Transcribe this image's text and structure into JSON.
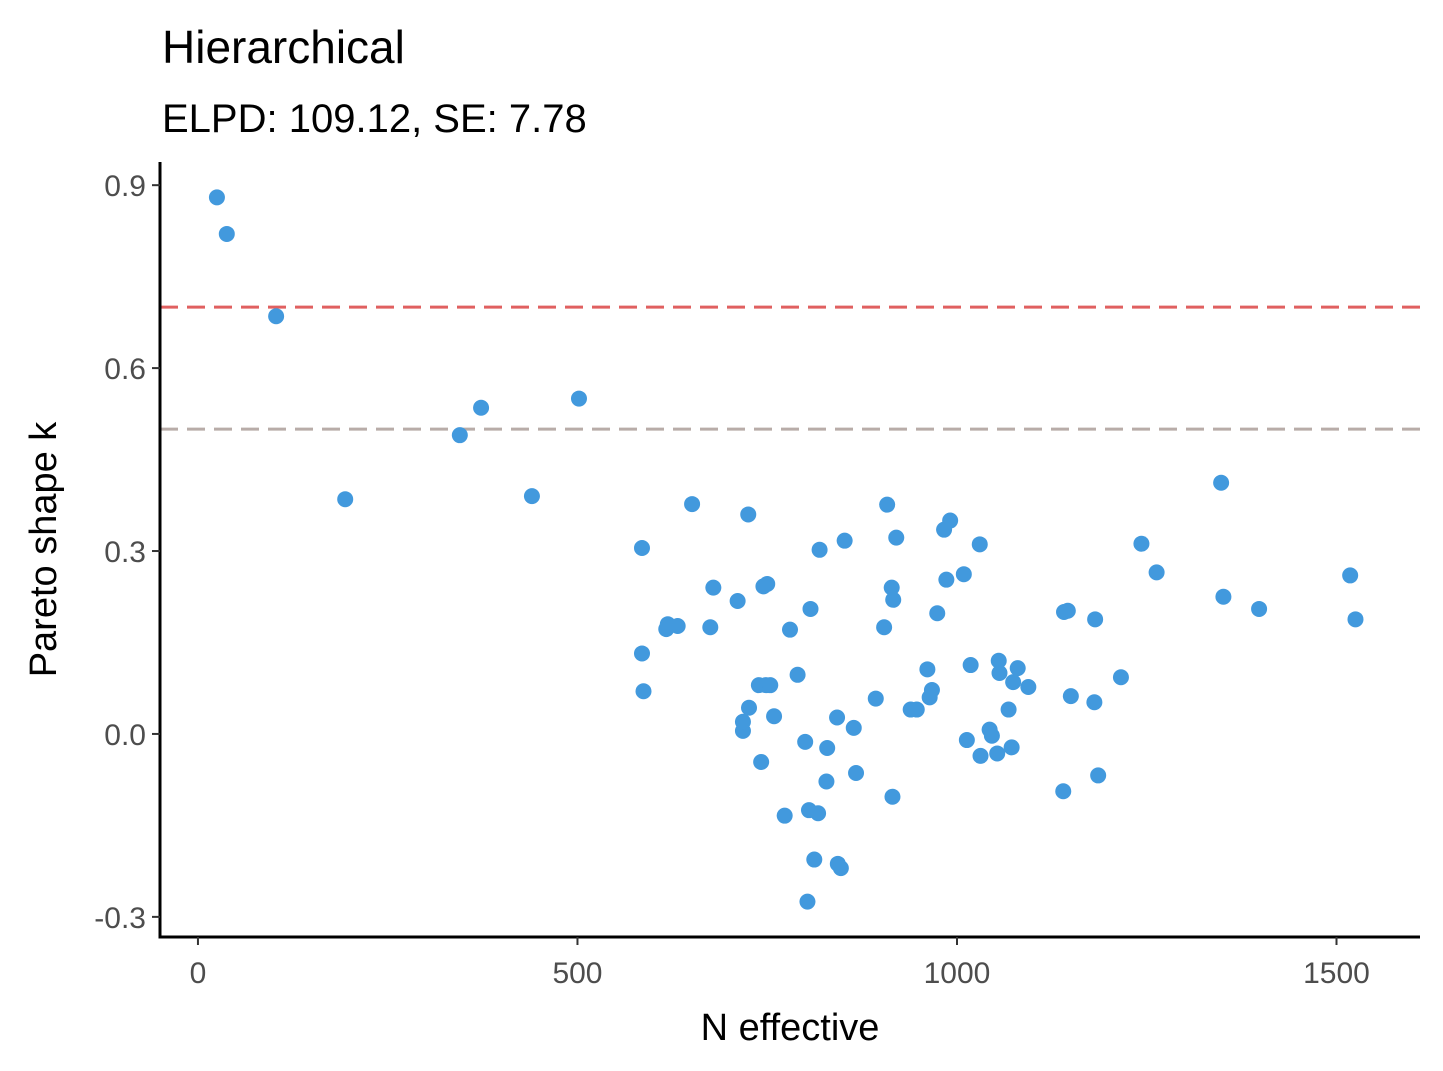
{
  "chart_data": {
    "type": "scatter",
    "title": "Hierarchical",
    "subtitle": "ELPD: 109.12, SE: 7.78",
    "xlabel": "N effective",
    "ylabel": "Pareto shape k",
    "xlim": [
      -50,
      1610
    ],
    "ylim": [
      -0.333,
      0.938
    ],
    "xticks": [
      0,
      500,
      1000,
      1500
    ],
    "xtick_labels": [
      "0",
      "500",
      "1000",
      "1500"
    ],
    "yticks": [
      -0.3,
      0.0,
      0.3,
      0.6,
      0.9
    ],
    "ytick_labels": [
      "-0.3",
      "0.0",
      "0.3",
      "0.6",
      "0.9"
    ],
    "grid": false,
    "reference_lines": [
      {
        "y": 0.7,
        "color": "#e06060",
        "style": "dashed"
      },
      {
        "y": 0.5,
        "color": "#b8aca8",
        "style": "dashed"
      }
    ],
    "point_color": "#4299dd",
    "points": [
      [
        25,
        0.88
      ],
      [
        38,
        0.82
      ],
      [
        103,
        0.685
      ],
      [
        194,
        0.385
      ],
      [
        345,
        0.49
      ],
      [
        373,
        0.535
      ],
      [
        440,
        0.39
      ],
      [
        502,
        0.55
      ],
      [
        585,
        0.305
      ],
      [
        585,
        0.132
      ],
      [
        587,
        0.07
      ],
      [
        617,
        0.172
      ],
      [
        619,
        0.18
      ],
      [
        632,
        0.177
      ],
      [
        651,
        0.377
      ],
      [
        675,
        0.175
      ],
      [
        679,
        0.24
      ],
      [
        711,
        0.218
      ],
      [
        718,
        0.005
      ],
      [
        718,
        0.02
      ],
      [
        725,
        0.36
      ],
      [
        726,
        0.043
      ],
      [
        739,
        0.08
      ],
      [
        742,
        -0.046
      ],
      [
        745,
        0.242
      ],
      [
        748,
        0.08
      ],
      [
        750,
        0.246
      ],
      [
        754,
        0.08
      ],
      [
        759,
        0.029
      ],
      [
        773,
        -0.134
      ],
      [
        780,
        0.171
      ],
      [
        790,
        0.097
      ],
      [
        800,
        -0.013
      ],
      [
        803,
        -0.275
      ],
      [
        805,
        -0.125
      ],
      [
        807,
        0.205
      ],
      [
        812,
        -0.206
      ],
      [
        817,
        -0.13
      ],
      [
        819,
        0.302
      ],
      [
        828,
        -0.078
      ],
      [
        829,
        -0.023
      ],
      [
        842,
        0.027
      ],
      [
        843,
        -0.213
      ],
      [
        847,
        -0.22
      ],
      [
        852,
        0.317
      ],
      [
        864,
        0.01
      ],
      [
        867,
        -0.064
      ],
      [
        893,
        0.058
      ],
      [
        904,
        0.175
      ],
      [
        908,
        0.376
      ],
      [
        914,
        0.24
      ],
      [
        915,
        -0.103
      ],
      [
        916,
        0.22
      ],
      [
        920,
        0.322
      ],
      [
        939,
        0.04
      ],
      [
        947,
        0.04
      ],
      [
        961,
        0.106
      ],
      [
        964,
        0.06
      ],
      [
        967,
        0.072
      ],
      [
        974,
        0.198
      ],
      [
        983,
        0.335
      ],
      [
        986,
        0.253
      ],
      [
        991,
        0.35
      ],
      [
        1009,
        0.262
      ],
      [
        1013,
        -0.01
      ],
      [
        1018,
        0.113
      ],
      [
        1030,
        0.311
      ],
      [
        1031,
        -0.036
      ],
      [
        1043,
        0.007
      ],
      [
        1046,
        -0.003
      ],
      [
        1053,
        -0.032
      ],
      [
        1055,
        0.12
      ],
      [
        1056,
        0.1
      ],
      [
        1068,
        0.04
      ],
      [
        1072,
        -0.022
      ],
      [
        1074,
        0.085
      ],
      [
        1080,
        0.108
      ],
      [
        1094,
        0.077
      ],
      [
        1140,
        -0.094
      ],
      [
        1141,
        0.2
      ],
      [
        1146,
        0.202
      ],
      [
        1150,
        0.062
      ],
      [
        1181,
        0.052
      ],
      [
        1182,
        0.188
      ],
      [
        1186,
        -0.068
      ],
      [
        1216,
        0.093
      ],
      [
        1243,
        0.312
      ],
      [
        1263,
        0.265
      ],
      [
        1348,
        0.412
      ],
      [
        1351,
        0.225
      ],
      [
        1398,
        0.205
      ],
      [
        1518,
        0.26
      ],
      [
        1525,
        0.188
      ]
    ]
  }
}
